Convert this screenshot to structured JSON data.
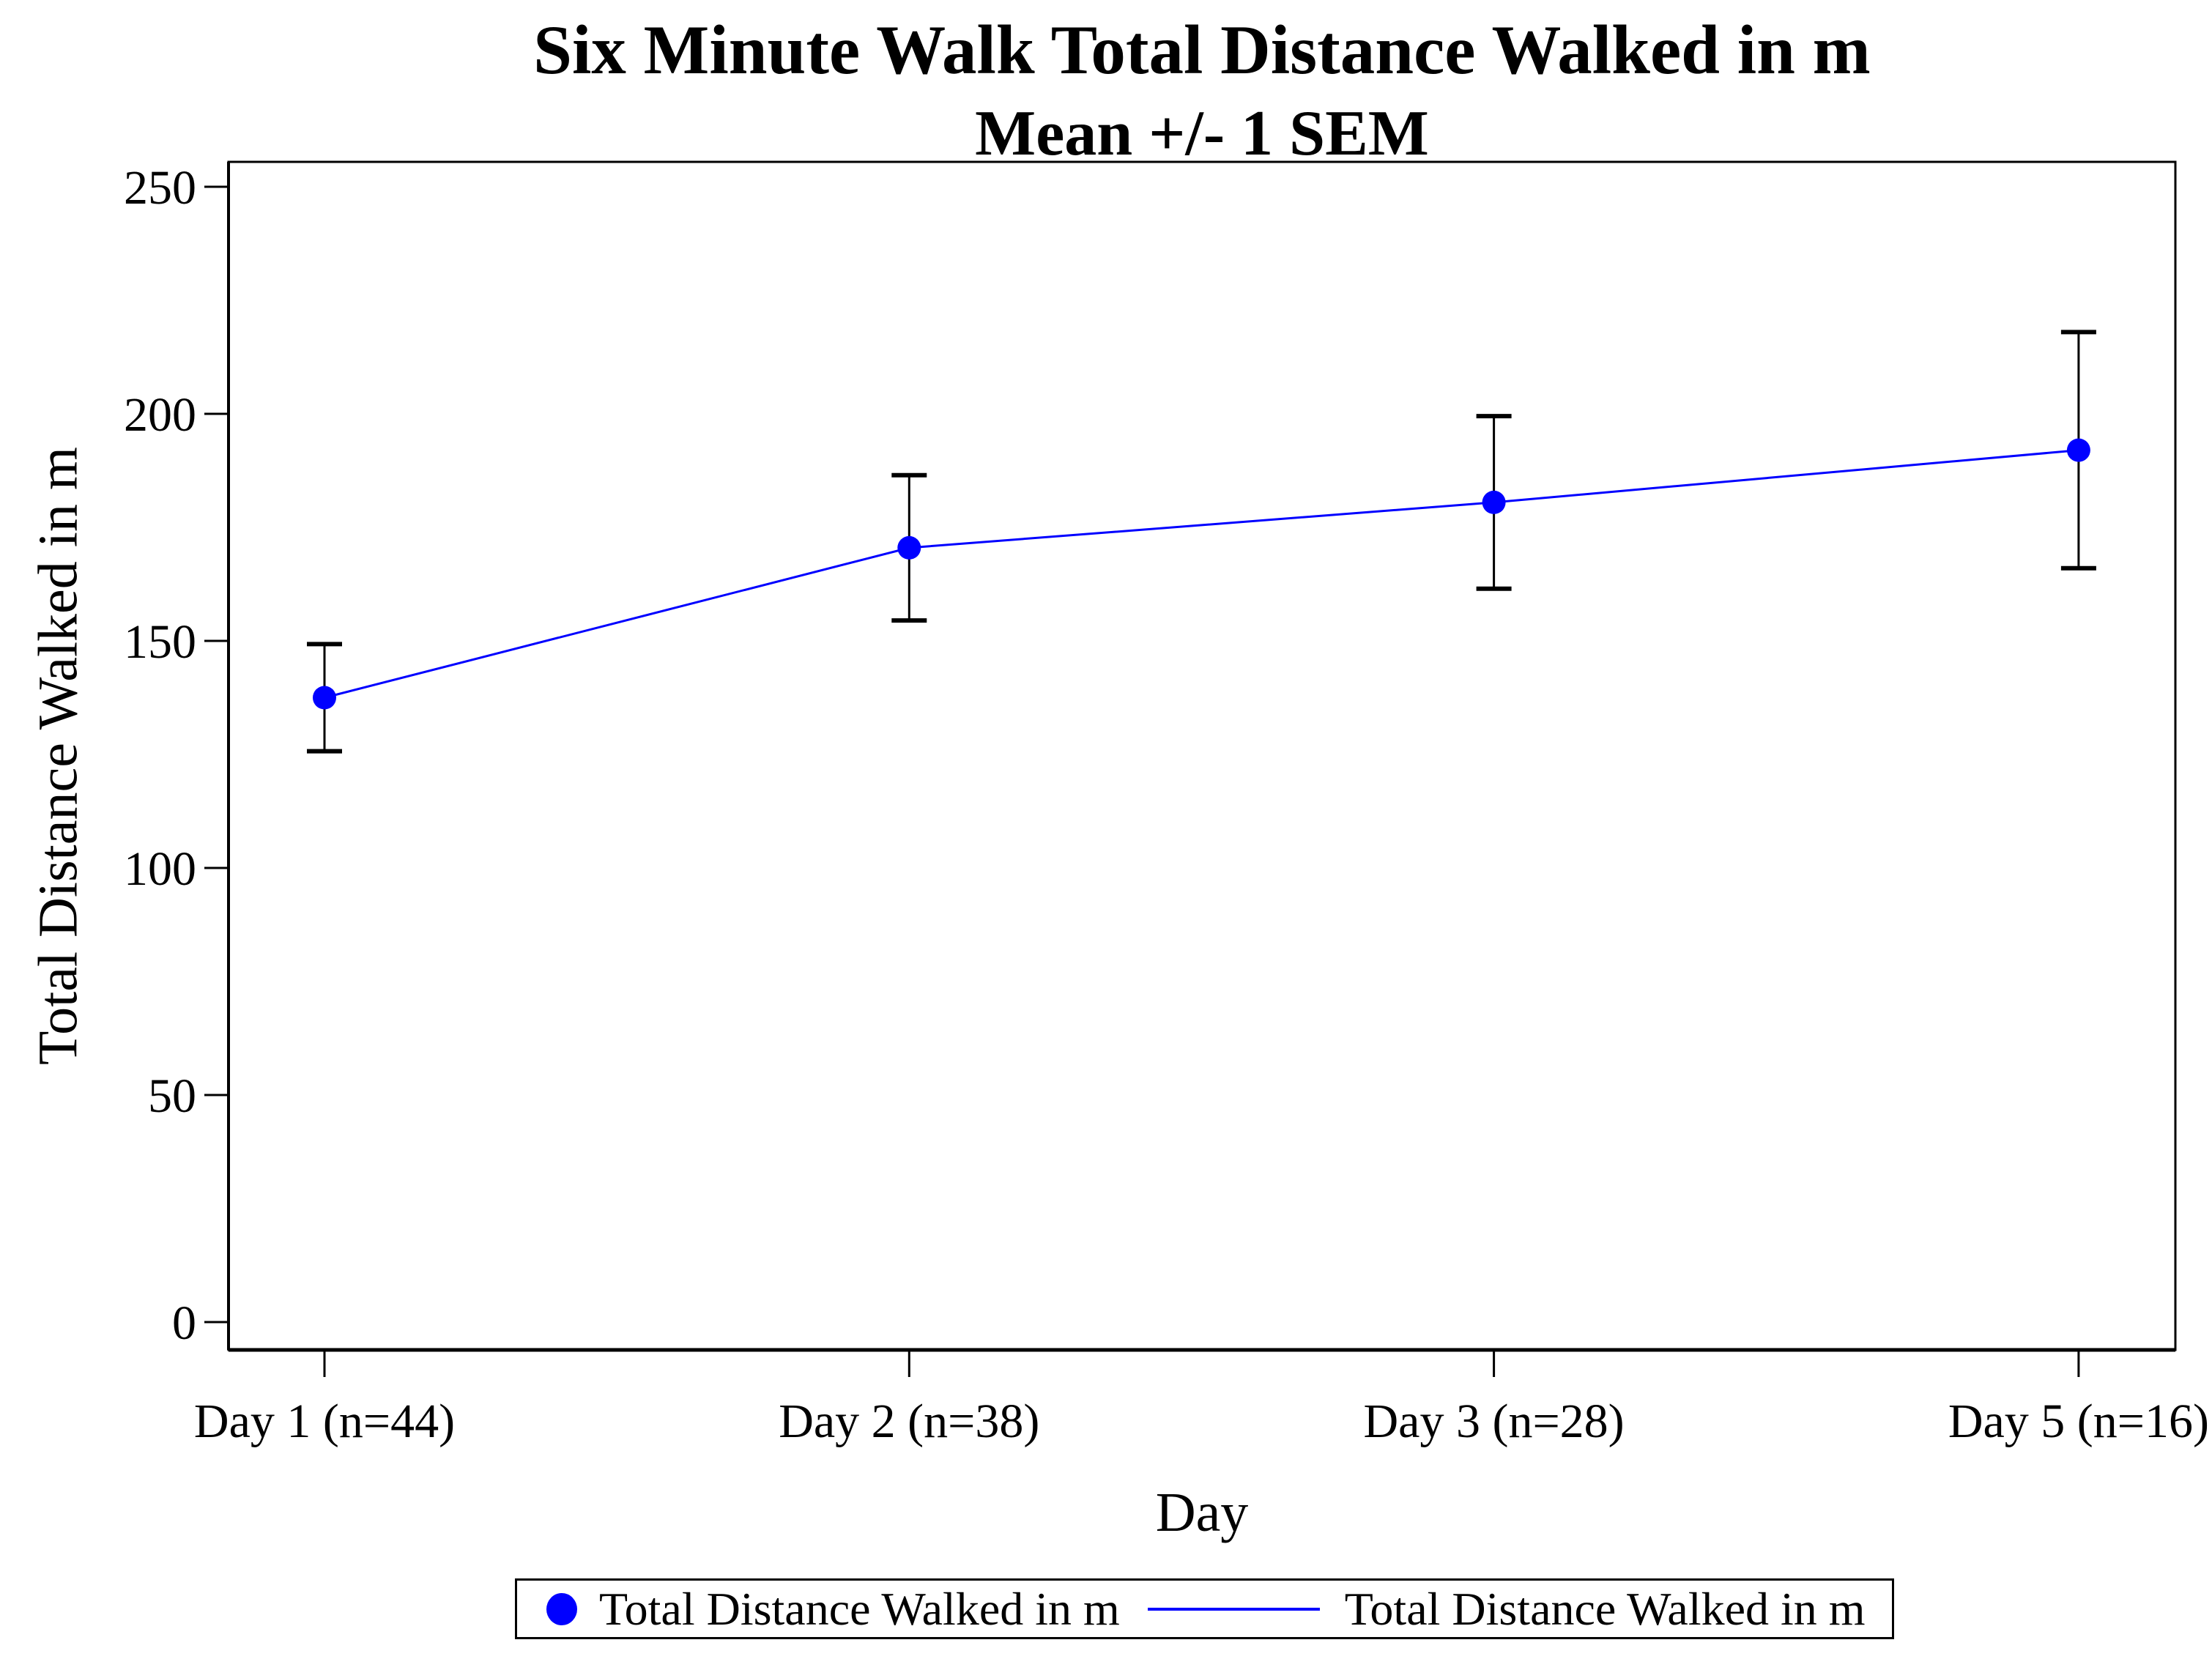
{
  "chart_data": {
    "type": "line",
    "title": "Six Minute Walk Total Distance Walked in m",
    "subtitle": "Mean +/- 1 SEM",
    "xlabel": "Day",
    "ylabel": "Total Distance Walked in m",
    "categories": [
      "Day 1 (n=44)",
      "Day 2 (n=38)",
      "Day 3 (n=28)",
      "Day 5 (n=16)"
    ],
    "series": [
      {
        "name": "Total Distance Walked in m",
        "means": [
          137.5,
          170.5,
          180.5,
          192
        ],
        "sem": [
          11.8,
          16,
          19,
          26
        ],
        "upper": [
          149.3,
          186.5,
          199.5,
          218
        ],
        "lower": [
          125.7,
          154.5,
          161.5,
          166
        ]
      }
    ],
    "yticks": [
      0,
      50,
      100,
      150,
      200,
      250
    ],
    "ylim": [
      0,
      255
    ],
    "grid": "off",
    "error_bar_note": "Mean +/- 1 SEM",
    "legend": {
      "position": "bottom",
      "entries": [
        {
          "symbol": "marker",
          "label": "Total Distance Walked in m"
        },
        {
          "symbol": "line",
          "label": "Total Distance Walked in m"
        }
      ]
    },
    "colors": {
      "series": "#0000FF",
      "error_bar": "#000000",
      "axis": "#000000",
      "text": "#000000",
      "background": "#FFFFFF"
    }
  }
}
